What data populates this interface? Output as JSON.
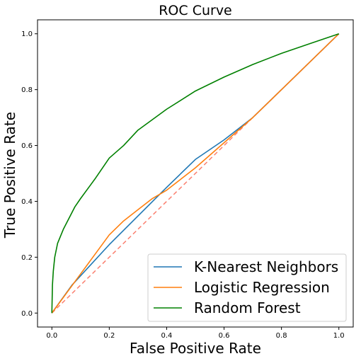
{
  "chart_data": {
    "type": "line",
    "title": "ROC Curve",
    "xlabel": "False Positive Rate",
    "ylabel": "True Positive Rate",
    "xlim": [
      -0.05,
      1.05
    ],
    "ylim": [
      -0.05,
      1.05
    ],
    "x_ticks": [
      "0.0",
      "0.2",
      "0.4",
      "0.6",
      "0.8",
      "1.0"
    ],
    "y_ticks": [
      "0.0",
      "0.2",
      "0.4",
      "0.6",
      "0.8",
      "1.0"
    ],
    "grid": false,
    "legend_position": "lower-right",
    "series": [
      {
        "name": "K-Nearest Neighbors",
        "color": "#1f77b4",
        "x": [
          0,
          0.07,
          0.2,
          0.4,
          0.5,
          0.6,
          0.7,
          0.8,
          0.9,
          1.0
        ],
        "y": [
          0,
          0.1,
          0.245,
          0.45,
          0.55,
          0.62,
          0.7,
          0.8,
          0.9,
          1.0
        ]
      },
      {
        "name": "Logistic Regression",
        "color": "#ff7f0e",
        "x": [
          0,
          0.05,
          0.1,
          0.15,
          0.2,
          0.25,
          0.3,
          0.35,
          0.4,
          0.45,
          0.5,
          0.55,
          0.6,
          0.7,
          0.8,
          0.9,
          1.0
        ],
        "y": [
          0,
          0.07,
          0.14,
          0.21,
          0.28,
          0.33,
          0.37,
          0.41,
          0.44,
          0.48,
          0.52,
          0.565,
          0.61,
          0.7,
          0.8,
          0.9,
          1.0
        ]
      },
      {
        "name": "Random Forest",
        "color": "#008000",
        "x": [
          0,
          0.002,
          0.005,
          0.01,
          0.02,
          0.04,
          0.06,
          0.08,
          0.1,
          0.15,
          0.2,
          0.25,
          0.3,
          0.4,
          0.5,
          0.6,
          0.7,
          0.8,
          0.9,
          1.0
        ],
        "y": [
          0,
          0.1,
          0.15,
          0.2,
          0.25,
          0.3,
          0.34,
          0.38,
          0.41,
          0.48,
          0.555,
          0.6,
          0.655,
          0.73,
          0.795,
          0.845,
          0.89,
          0.93,
          0.965,
          1.0
        ]
      }
    ],
    "reference_line": {
      "x": [
        0,
        1
      ],
      "y": [
        0,
        1
      ],
      "color": "#fb7f6f",
      "style": "dashed"
    }
  }
}
